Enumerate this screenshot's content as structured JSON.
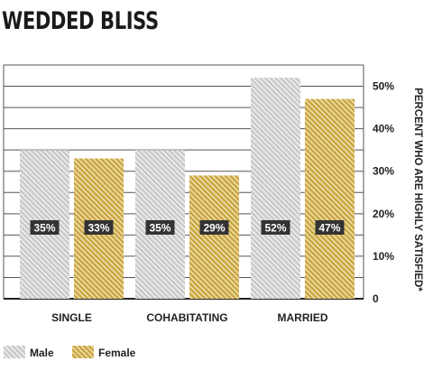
{
  "chart_data": {
    "type": "bar",
    "title": "WEDDED BLISS",
    "categories": [
      "SINGLE",
      "COHABITATING",
      "MARRIED"
    ],
    "series": [
      {
        "name": "Male",
        "values": [
          35,
          35,
          52
        ],
        "labels": [
          "35%",
          "35%",
          "52%"
        ],
        "color": "#c8c8c8",
        "stripe": "#efefef"
      },
      {
        "name": "Female",
        "values": [
          33,
          29,
          47
        ],
        "labels": [
          "33%",
          "29%",
          "47%"
        ],
        "color": "#c9a43e",
        "stripe": "#eee0b0"
      }
    ],
    "ylabel": "PERCENT WHO ARE HIGHLY SATISFIED*",
    "yticks": [
      "0",
      "10%",
      "20%",
      "30%",
      "40%",
      "50%"
    ],
    "ytick_values": [
      0,
      10,
      20,
      30,
      40,
      50
    ],
    "ylim": [
      0,
      55
    ],
    "grid": true,
    "legend": "bottom-left",
    "label_bg": "#333333",
    "label_color": "#ffffff"
  }
}
